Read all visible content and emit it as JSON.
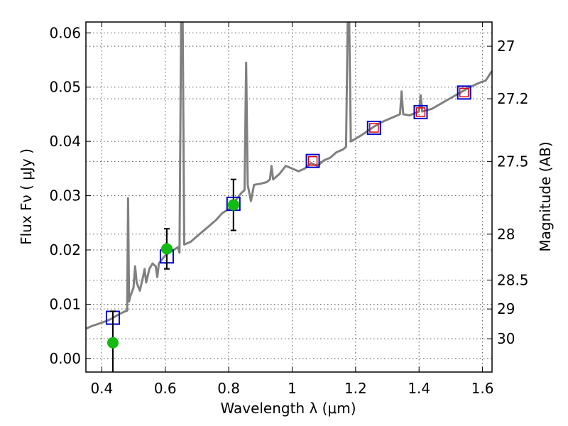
{
  "chart_data": {
    "type": "scatter",
    "xlabel": "Wavelength  λ (μm)",
    "ylabel": "Flux  Fν  ( μJy )",
    "ylabel_right": "Magnitude (AB)",
    "xlim": [
      0.35,
      1.63
    ],
    "ylim": [
      -0.0025,
      0.062
    ],
    "x_ticks": [
      0.4,
      0.6,
      0.8,
      1.0,
      1.2,
      1.4,
      1.6
    ],
    "x_tick_labels": [
      "0.4",
      "0.6",
      "0.8",
      "1",
      "1.2",
      "1.4",
      "1.6"
    ],
    "y_ticks": [
      0.0,
      0.01,
      0.02,
      0.03,
      0.04,
      0.05,
      0.06
    ],
    "y_tick_labels": [
      "0.00",
      "0.01",
      "0.02",
      "0.03",
      "0.04",
      "0.05",
      "0.06"
    ],
    "right_ticks": [
      {
        "label": "27",
        "flux": 0.05754
      },
      {
        "label": "27.2",
        "flux": 0.04786
      },
      {
        "label": "27.5",
        "flux": 0.03631
      },
      {
        "label": "28",
        "flux": 0.02291
      },
      {
        "label": "28.5",
        "flux": 0.01445
      },
      {
        "label": "29",
        "flux": 0.00912
      },
      {
        "label": "30",
        "flux": 0.00363
      }
    ],
    "grid": true,
    "colors": {
      "template": "#808080",
      "model": "#0000cc",
      "model_inner": "#dd0000",
      "observed": "#11bb11",
      "errorbar": "#000000"
    },
    "template_spectrum": [
      [
        0.35,
        0.0055
      ],
      [
        0.37,
        0.006
      ],
      [
        0.39,
        0.0064
      ],
      [
        0.41,
        0.0068
      ],
      [
        0.43,
        0.0073
      ],
      [
        0.45,
        0.008
      ],
      [
        0.47,
        0.0086
      ],
      [
        0.48,
        0.0088
      ],
      [
        0.483,
        0.0295
      ],
      [
        0.486,
        0.0105
      ],
      [
        0.49,
        0.0115
      ],
      [
        0.5,
        0.013
      ],
      [
        0.505,
        0.017
      ],
      [
        0.51,
        0.014
      ],
      [
        0.52,
        0.0125
      ],
      [
        0.53,
        0.015
      ],
      [
        0.535,
        0.0165
      ],
      [
        0.54,
        0.014
      ],
      [
        0.55,
        0.0165
      ],
      [
        0.56,
        0.0175
      ],
      [
        0.57,
        0.017
      ],
      [
        0.575,
        0.015
      ],
      [
        0.58,
        0.0175
      ],
      [
        0.6,
        0.019
      ],
      [
        0.62,
        0.0198
      ],
      [
        0.64,
        0.0205
      ],
      [
        0.645,
        0.0195
      ],
      [
        0.65,
        0.062
      ],
      [
        0.655,
        0.062
      ],
      [
        0.66,
        0.021
      ],
      [
        0.68,
        0.0215
      ],
      [
        0.7,
        0.0225
      ],
      [
        0.72,
        0.0235
      ],
      [
        0.74,
        0.0245
      ],
      [
        0.76,
        0.0255
      ],
      [
        0.78,
        0.0268
      ],
      [
        0.8,
        0.0275
      ],
      [
        0.82,
        0.029
      ],
      [
        0.84,
        0.0305
      ],
      [
        0.85,
        0.031
      ],
      [
        0.855,
        0.0545
      ],
      [
        0.86,
        0.032
      ],
      [
        0.87,
        0.029
      ],
      [
        0.88,
        0.032
      ],
      [
        0.9,
        0.0322
      ],
      [
        0.92,
        0.0325
      ],
      [
        0.93,
        0.033
      ],
      [
        0.935,
        0.0355
      ],
      [
        0.94,
        0.033
      ],
      [
        0.96,
        0.034
      ],
      [
        0.98,
        0.0355
      ],
      [
        1.0,
        0.035
      ],
      [
        1.02,
        0.0345
      ],
      [
        1.04,
        0.035
      ],
      [
        1.06,
        0.036
      ],
      [
        1.08,
        0.0355
      ],
      [
        1.1,
        0.0365
      ],
      [
        1.12,
        0.037
      ],
      [
        1.14,
        0.038
      ],
      [
        1.16,
        0.0385
      ],
      [
        1.17,
        0.039
      ],
      [
        1.175,
        0.062
      ],
      [
        1.18,
        0.062
      ],
      [
        1.185,
        0.04
      ],
      [
        1.2,
        0.0405
      ],
      [
        1.22,
        0.0412
      ],
      [
        1.24,
        0.042
      ],
      [
        1.26,
        0.0428
      ],
      [
        1.28,
        0.0435
      ],
      [
        1.3,
        0.044
      ],
      [
        1.32,
        0.0445
      ],
      [
        1.34,
        0.045
      ],
      [
        1.345,
        0.0492
      ],
      [
        1.35,
        0.045
      ],
      [
        1.37,
        0.0448
      ],
      [
        1.4,
        0.0455
      ],
      [
        1.405,
        0.0485
      ],
      [
        1.41,
        0.0455
      ],
      [
        1.44,
        0.046
      ],
      [
        1.47,
        0.047
      ],
      [
        1.5,
        0.048
      ],
      [
        1.53,
        0.049
      ],
      [
        1.56,
        0.05
      ],
      [
        1.59,
        0.0508
      ],
      [
        1.61,
        0.0512
      ],
      [
        1.63,
        0.053
      ]
    ],
    "model_photometry": [
      {
        "x": 0.435,
        "y": 0.0075
      },
      {
        "x": 0.605,
        "y": 0.0188
      },
      {
        "x": 0.815,
        "y": 0.0285
      },
      {
        "x": 1.065,
        "y": 0.0364
      },
      {
        "x": 1.258,
        "y": 0.0425
      },
      {
        "x": 1.405,
        "y": 0.0454
      },
      {
        "x": 1.542,
        "y": 0.049
      }
    ],
    "observed_photometry": [
      {
        "x": 0.435,
        "y": 0.0029,
        "err": 0.0058
      },
      {
        "x": 0.605,
        "y": 0.0202,
        "err": 0.0037
      },
      {
        "x": 0.815,
        "y": 0.0283,
        "err": 0.0047
      }
    ]
  }
}
